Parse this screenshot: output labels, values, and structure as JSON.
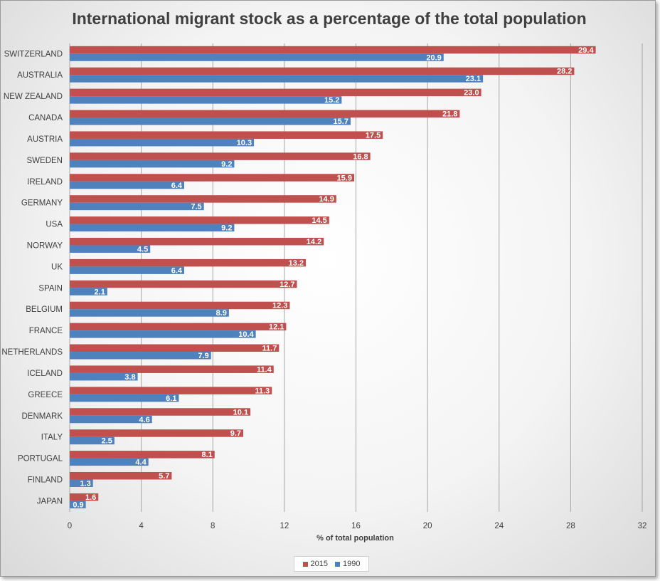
{
  "chart_data": {
    "type": "bar",
    "orientation": "horizontal",
    "title": "International migrant stock as a percentage of the total population",
    "xlabel": "% of total population",
    "ylabel": "",
    "xlim": [
      0,
      32
    ],
    "xticks": [
      0,
      4,
      8,
      12,
      16,
      20,
      24,
      28,
      32
    ],
    "grid": true,
    "legend_position": "bottom",
    "categories": [
      "SWITZERLAND",
      "AUSTRALIA",
      "NEW ZEALAND",
      "CANADA",
      "AUSTRIA",
      "SWEDEN",
      "IRELAND",
      "GERMANY",
      "USA",
      "NORWAY",
      "UK",
      "SPAIN",
      "BELGIUM",
      "FRANCE",
      "NETHERLANDS",
      "ICELAND",
      "GREECE",
      "DENMARK",
      "ITALY",
      "PORTUGAL",
      "FINLAND",
      "JAPAN"
    ],
    "series": [
      {
        "name": "2015",
        "color": "#c0504d",
        "values": [
          29.4,
          28.2,
          23.0,
          21.8,
          17.5,
          16.8,
          15.9,
          14.9,
          14.5,
          14.2,
          13.2,
          12.7,
          12.3,
          12.1,
          11.7,
          11.4,
          11.3,
          10.1,
          9.7,
          8.1,
          5.7,
          1.6
        ]
      },
      {
        "name": "1990",
        "color": "#4f81bd",
        "values": [
          20.9,
          23.1,
          15.2,
          15.7,
          10.3,
          9.2,
          6.4,
          7.5,
          9.2,
          4.5,
          6.4,
          2.1,
          8.9,
          10.4,
          7.9,
          3.8,
          6.1,
          4.6,
          2.5,
          4.4,
          1.3,
          0.9
        ]
      }
    ]
  }
}
